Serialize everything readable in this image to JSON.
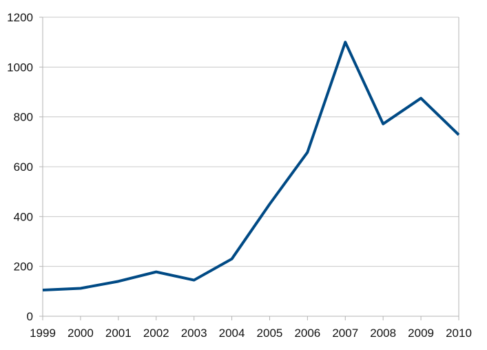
{
  "chart_data": {
    "type": "line",
    "title": "",
    "xlabel": "",
    "ylabel": "",
    "x": [
      "1999",
      "2000",
      "2001",
      "2002",
      "2003",
      "2004",
      "2005",
      "2006",
      "2007",
      "2008",
      "2009",
      "2010"
    ],
    "series": [
      {
        "values": [
          105,
          112,
          140,
          178,
          145,
          230,
          450,
          658,
          1100,
          772,
          875,
          728
        ],
        "color": "#004a85"
      }
    ],
    "ylim": [
      0,
      1200
    ],
    "yticks": [
      0,
      200,
      400,
      600,
      800,
      1000,
      1200
    ],
    "grid": true,
    "legend": "none",
    "colors": {
      "grid": "#c8c8c8",
      "axis": "#b3b3b3",
      "line": "#004a85"
    }
  }
}
